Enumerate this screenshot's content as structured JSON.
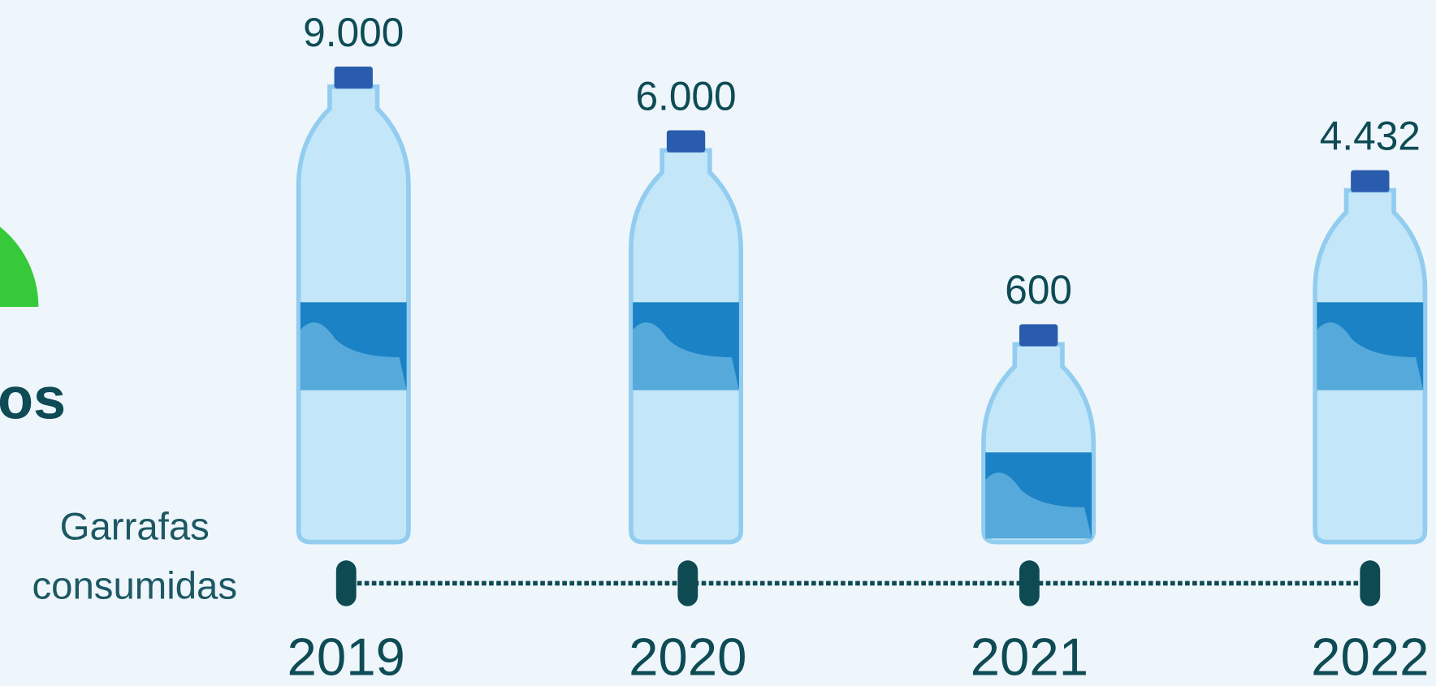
{
  "chart_data": {
    "type": "pictograph",
    "side_text": "os",
    "row_label": [
      "Garrafas",
      "consumidas"
    ],
    "categories": [
      "2019",
      "2020",
      "2021",
      "2022"
    ],
    "values": [
      9000,
      6000,
      600,
      4432
    ],
    "value_labels": [
      "9.000",
      "6.000",
      "600",
      "4.432"
    ],
    "color": "#1b82c5"
  }
}
